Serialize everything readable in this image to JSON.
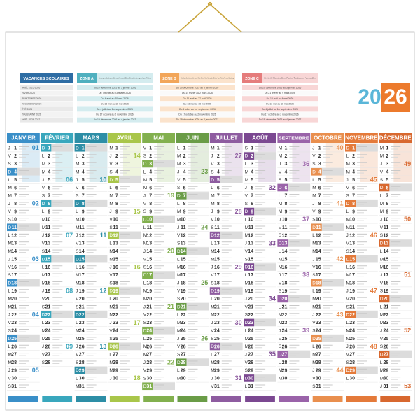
{
  "year": {
    "first": "20",
    "second": "26"
  },
  "legend": {
    "title": "VACANCES SCOLAIRES",
    "rows": [
      "NOËL 2025-2026",
      "HIVER 2026",
      "PRINTEMPS 2026",
      "ASCENSION 2026",
      "ÉTÉ 2026",
      "TOUSSAINT 2026",
      "NOËL 2026-2027"
    ]
  },
  "zones": [
    {
      "name": "ZONE A",
      "color": "#4fb0bf",
      "tint": "#d4ecef",
      "academies": "Besançon, Bordeaux, Clermont-Ferrand, Dijon, Grenoble, Limoges, Lyon, Poitiers",
      "dates": [
        "Du 20 décembre 2025 au 5 janvier 2026",
        "Du 7 février au 23 février 2026",
        "Du 4 avril au 20 avril 2026",
        "Du 13 mai au 18 mai 2026",
        "Du 4 juillet au 1er septembre 2026",
        "Du 17 octobre au 2 novembre 2026",
        "Du 19 décembre 2026 au 4 janvier 2027"
      ]
    },
    {
      "name": "ZONE B",
      "color": "#f2a65a",
      "tint": "#fbe3cc",
      "academies": "Aix-Marseille, Amiens, Lille, Nancy-Metz, Nantes, Nice, Normandie, Orléans-Tours, Reims, Rennes, Strasbourg",
      "dates": [
        "Du 20 décembre 2025 au 5 janvier 2026",
        "Du 14 février au 2 mars 2026",
        "Du 11 avril au 27 avril 2026",
        "Du 13 mai au 18 mai 2026",
        "Du 4 juillet au 1er septembre 2026",
        "Du 17 octobre au 2 novembre 2026",
        "Du 19 décembre 2026 au 4 janvier 2027"
      ]
    },
    {
      "name": "ZONE C",
      "color": "#e57c7c",
      "tint": "#f8d6d6",
      "academies": "Créteil, Montpellier, Paris, Toulouse, Versailles",
      "dates": [
        "Du 20 décembre 2025 au 5 janvier 2026",
        "Du 21 février au 9 mars 2026",
        "Du 18 avril au 4 mai 2026",
        "Du 13 mai au 18 mai 2026",
        "Du 4 juillet au 1er septembre 2026",
        "Du 17 octobre au 2 novembre 2026",
        "Du 19 décembre 2026 au 4 janvier 2027"
      ]
    }
  ],
  "months": [
    {
      "name": "JANVIER",
      "color": "#3a8fc8",
      "weeks": [
        "01",
        "02",
        "03",
        "04",
        "05"
      ],
      "weekdays": [
        "J",
        "V",
        "S",
        "D",
        "L",
        "M",
        "M",
        "J",
        "V",
        "S",
        "D",
        "L",
        "M",
        "M",
        "J",
        "V",
        "S",
        "D",
        "L",
        "M",
        "M",
        "J",
        "V",
        "S",
        "D",
        "L",
        "M",
        "M",
        "J",
        "V",
        "S"
      ],
      "days": [
        1,
        2,
        3,
        4,
        5,
        6,
        7,
        8,
        9,
        10,
        11,
        12,
        13,
        14,
        15,
        16,
        17,
        18,
        19,
        20,
        21,
        22,
        23,
        24,
        25,
        26,
        27,
        28,
        29,
        30,
        31
      ]
    },
    {
      "name": "FÉVRIER",
      "color": "#39a7bd",
      "weeks": [
        "06",
        "07",
        "08",
        "09"
      ],
      "weekdays": [
        "D",
        "L",
        "M",
        "M",
        "J",
        "V",
        "S",
        "D",
        "L",
        "M",
        "M",
        "J",
        "V",
        "S",
        "D",
        "L",
        "M",
        "M",
        "J",
        "V",
        "S",
        "D",
        "L",
        "M",
        "M",
        "J",
        "V",
        "S"
      ],
      "days": [
        1,
        2,
        3,
        4,
        5,
        6,
        7,
        8,
        9,
        10,
        11,
        12,
        13,
        14,
        15,
        16,
        17,
        18,
        19,
        20,
        21,
        22,
        23,
        24,
        25,
        26,
        27,
        28
      ]
    },
    {
      "name": "MARS",
      "color": "#2d8ea6",
      "weeks": [
        "10",
        "11",
        "12",
        "13"
      ],
      "weekdays": [
        "D",
        "L",
        "M",
        "M",
        "J",
        "V",
        "S",
        "D",
        "L",
        "M",
        "M",
        "J",
        "V",
        "S",
        "D",
        "L",
        "M",
        "M",
        "J",
        "V",
        "S",
        "D",
        "L",
        "M",
        "M",
        "J",
        "V",
        "S",
        "D",
        "L",
        "M"
      ],
      "days": [
        1,
        2,
        3,
        4,
        5,
        6,
        7,
        8,
        9,
        10,
        11,
        12,
        13,
        14,
        15,
        16,
        17,
        18,
        19,
        20,
        21,
        22,
        23,
        24,
        25,
        26,
        27,
        28,
        29,
        30,
        31
      ]
    },
    {
      "name": "AVRIL",
      "color": "#a9c64a",
      "weeks": [
        "14",
        "15",
        "16",
        "17",
        "18"
      ],
      "weekdays": [
        "M",
        "J",
        "V",
        "S",
        "D",
        "L",
        "M",
        "M",
        "J",
        "V",
        "S",
        "D",
        "L",
        "M",
        "M",
        "J",
        "V",
        "S",
        "D",
        "L",
        "M",
        "M",
        "J",
        "V",
        "S",
        "D",
        "L",
        "M",
        "M",
        "J"
      ],
      "days": [
        1,
        2,
        3,
        4,
        5,
        6,
        7,
        8,
        9,
        10,
        11,
        12,
        13,
        14,
        15,
        16,
        17,
        18,
        19,
        20,
        21,
        22,
        23,
        24,
        25,
        26,
        27,
        28,
        29,
        30
      ]
    },
    {
      "name": "MAI",
      "color": "#82b04e",
      "weeks": [
        "19",
        "20",
        "21",
        "22"
      ],
      "weekdays": [
        "V",
        "S",
        "D",
        "L",
        "M",
        "M",
        "J",
        "V",
        "S",
        "D",
        "L",
        "M",
        "M",
        "J",
        "V",
        "S",
        "D",
        "L",
        "M",
        "M",
        "J",
        "V",
        "S",
        "D",
        "L",
        "M",
        "M",
        "J",
        "V",
        "S",
        "D"
      ],
      "days": [
        1,
        2,
        3,
        4,
        5,
        6,
        7,
        8,
        9,
        10,
        11,
        12,
        13,
        14,
        15,
        16,
        17,
        18,
        19,
        20,
        21,
        22,
        23,
        24,
        25,
        26,
        27,
        28,
        29,
        30,
        31
      ]
    },
    {
      "name": "JUIN",
      "color": "#6a9c47",
      "weeks": [
        "23",
        "24",
        "25",
        "26"
      ],
      "weekdays": [
        "L",
        "M",
        "M",
        "J",
        "V",
        "S",
        "D",
        "L",
        "M",
        "M",
        "J",
        "V",
        "S",
        "D",
        "L",
        "M",
        "M",
        "J",
        "V",
        "S",
        "D",
        "L",
        "M",
        "M",
        "J",
        "V",
        "S",
        "D",
        "L",
        "M"
      ],
      "days": [
        1,
        2,
        3,
        4,
        5,
        6,
        7,
        8,
        9,
        10,
        11,
        12,
        13,
        14,
        15,
        16,
        17,
        18,
        19,
        20,
        21,
        22,
        23,
        24,
        25,
        26,
        27,
        28,
        29,
        30
      ]
    },
    {
      "name": "JUILLET",
      "color": "#8e5ca0",
      "weeks": [
        "27",
        "28",
        "29",
        "30",
        "31"
      ],
      "weekdays": [
        "M",
        "J",
        "V",
        "S",
        "D",
        "L",
        "M",
        "M",
        "J",
        "V",
        "S",
        "D",
        "L",
        "M",
        "M",
        "J",
        "V",
        "S",
        "D",
        "L",
        "M",
        "M",
        "J",
        "V",
        "S",
        "D",
        "L",
        "M",
        "M",
        "J",
        "V"
      ],
      "days": [
        1,
        2,
        3,
        4,
        5,
        6,
        7,
        8,
        9,
        10,
        11,
        12,
        13,
        14,
        15,
        16,
        17,
        18,
        19,
        20,
        21,
        22,
        23,
        24,
        25,
        26,
        27,
        28,
        29,
        30,
        31
      ]
    },
    {
      "name": "AOÛT",
      "color": "#7b4891",
      "weeks": [
        "32",
        "33",
        "34",
        "35"
      ],
      "weekdays": [
        "S",
        "D",
        "L",
        "M",
        "M",
        "J",
        "V",
        "S",
        "D",
        "L",
        "M",
        "M",
        "J",
        "V",
        "S",
        "D",
        "L",
        "M",
        "M",
        "J",
        "V",
        "S",
        "D",
        "L",
        "M",
        "M",
        "J",
        "V",
        "S",
        "D",
        "L"
      ],
      "days": [
        1,
        2,
        3,
        4,
        5,
        6,
        7,
        8,
        9,
        10,
        11,
        12,
        13,
        14,
        15,
        16,
        17,
        18,
        19,
        20,
        21,
        22,
        23,
        24,
        25,
        26,
        27,
        28,
        29,
        30,
        31
      ]
    },
    {
      "name": "SEPTEMBRE",
      "color": "#9a63a9",
      "weeks": [
        "36",
        "37",
        "38",
        "39"
      ],
      "weekdays": [
        "M",
        "M",
        "J",
        "V",
        "S",
        "D",
        "L",
        "M",
        "M",
        "J",
        "V",
        "S",
        "D",
        "L",
        "M",
        "M",
        "J",
        "V",
        "S",
        "D",
        "L",
        "M",
        "M",
        "J",
        "V",
        "S",
        "D",
        "L",
        "M",
        "M"
      ],
      "days": [
        1,
        2,
        3,
        4,
        5,
        6,
        7,
        8,
        9,
        10,
        11,
        12,
        13,
        14,
        15,
        16,
        17,
        18,
        19,
        20,
        21,
        22,
        23,
        24,
        25,
        26,
        27,
        28,
        29,
        30
      ]
    },
    {
      "name": "OCTOBRE",
      "color": "#e98f4e",
      "weeks": [
        "40",
        "41",
        "42",
        "43",
        "44"
      ],
      "weekdays": [
        "J",
        "V",
        "S",
        "D",
        "L",
        "M",
        "M",
        "J",
        "V",
        "S",
        "D",
        "L",
        "M",
        "M",
        "J",
        "V",
        "S",
        "D",
        "L",
        "M",
        "M",
        "J",
        "V",
        "S",
        "D",
        "L",
        "M",
        "M",
        "J",
        "V",
        "S"
      ],
      "days": [
        1,
        2,
        3,
        4,
        5,
        6,
        7,
        8,
        9,
        10,
        11,
        12,
        13,
        14,
        15,
        16,
        17,
        18,
        19,
        20,
        21,
        22,
        23,
        24,
        25,
        26,
        27,
        28,
        29,
        30,
        31
      ]
    },
    {
      "name": "NOVEMBRE",
      "color": "#e47a3a",
      "weeks": [
        "45",
        "46",
        "47",
        "48"
      ],
      "weekdays": [
        "D",
        "L",
        "M",
        "M",
        "J",
        "V",
        "S",
        "D",
        "L",
        "M",
        "M",
        "J",
        "V",
        "S",
        "D",
        "L",
        "M",
        "M",
        "J",
        "V",
        "S",
        "D",
        "L",
        "M",
        "M",
        "J",
        "V",
        "S",
        "D",
        "L"
      ],
      "days": [
        1,
        2,
        3,
        4,
        5,
        6,
        7,
        8,
        9,
        10,
        11,
        12,
        13,
        14,
        15,
        16,
        17,
        18,
        19,
        20,
        21,
        22,
        23,
        24,
        25,
        26,
        27,
        28,
        29,
        30
      ]
    },
    {
      "name": "DÉCEMBRE",
      "color": "#d8682f",
      "weeks": [
        "49",
        "50",
        "51",
        "52",
        "53"
      ],
      "weekdays": [
        "M",
        "M",
        "J",
        "V",
        "S",
        "D",
        "L",
        "M",
        "M",
        "J",
        "V",
        "S",
        "D",
        "L",
        "M",
        "M",
        "J",
        "V",
        "S",
        "D",
        "L",
        "M",
        "M",
        "J",
        "V",
        "S",
        "D",
        "L",
        "M",
        "M",
        "J"
      ],
      "days": [
        1,
        2,
        3,
        4,
        5,
        6,
        7,
        8,
        9,
        10,
        11,
        12,
        13,
        14,
        15,
        16,
        17,
        18,
        19,
        20,
        21,
        22,
        23,
        24,
        25,
        26,
        27,
        28,
        29,
        30,
        31
      ]
    }
  ]
}
